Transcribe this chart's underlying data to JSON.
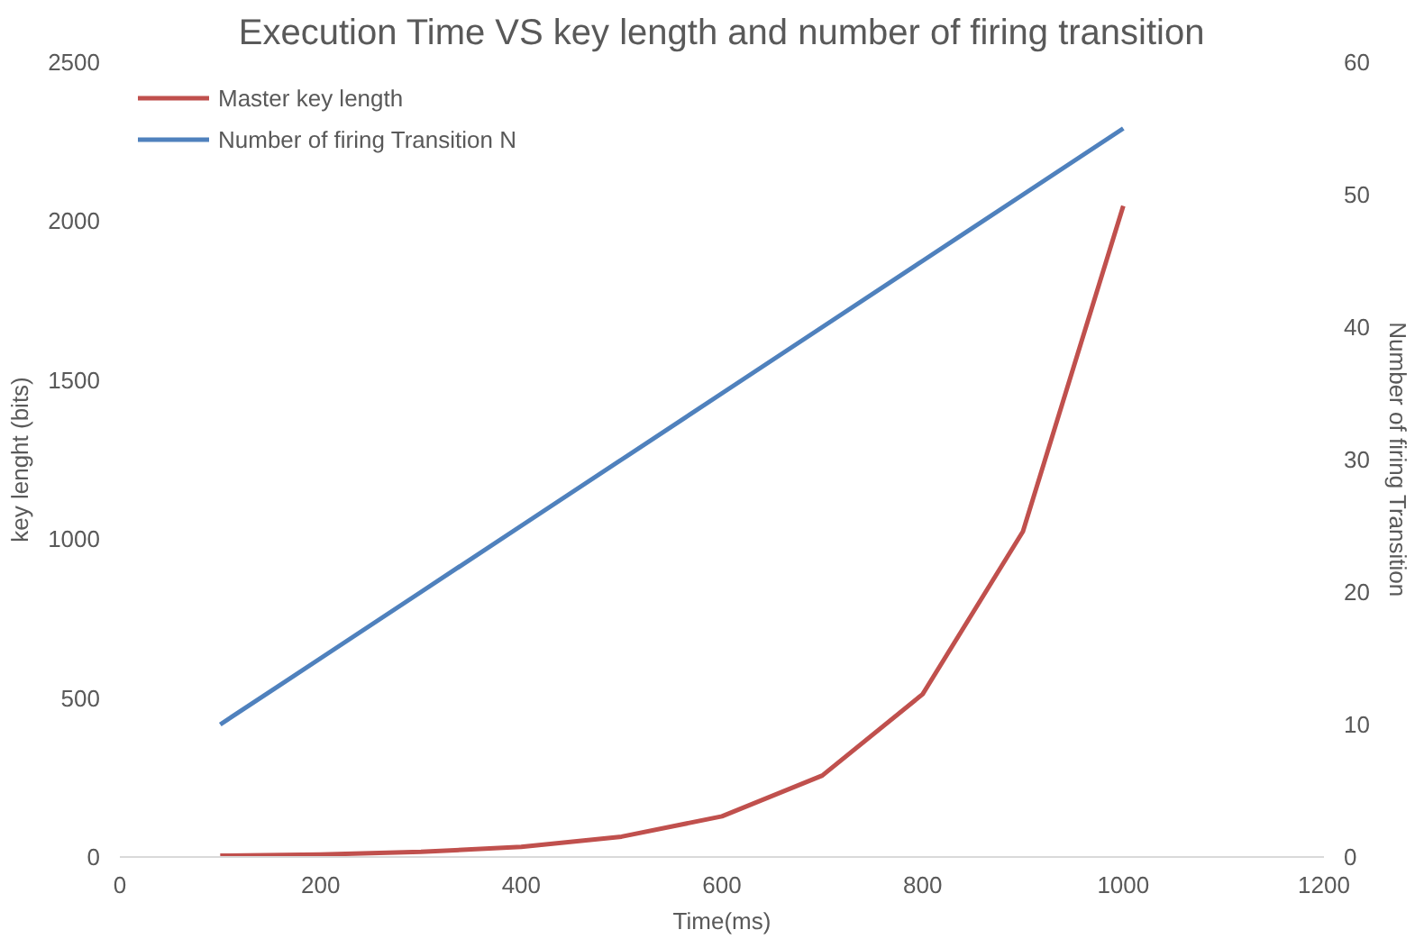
{
  "chart_data": {
    "type": "line",
    "title": "Execution Time VS key length and number of firing transition",
    "xlabel": "Time(ms)",
    "ylabel": "key lenght (bits)",
    "y2label": "Number of firing Transition",
    "x": [
      100,
      200,
      300,
      400,
      500,
      600,
      700,
      800,
      900,
      1000
    ],
    "series": [
      {
        "name": "Master key length",
        "color": "#c0504d",
        "values": [
          4,
          8,
          16,
          32,
          64,
          128,
          256,
          512,
          1024,
          2048
        ]
      },
      {
        "name": "Number of firing Transition N",
        "color": "#4f81bd",
        "axis": "y2",
        "values": [
          10,
          15,
          20,
          25,
          30,
          35,
          40,
          45,
          50,
          55
        ]
      }
    ],
    "xlim": [
      0,
      1200
    ],
    "xticks": [
      0,
      200,
      400,
      600,
      800,
      1000,
      1200
    ],
    "ylim": [
      0,
      2500
    ],
    "yticks": [
      0,
      500,
      1000,
      1500,
      2000,
      2500
    ],
    "y2lim": [
      0,
      60
    ],
    "y2ticks": [
      0,
      10,
      20,
      30,
      40,
      50,
      60
    ],
    "grid": false,
    "legend": "top left",
    "marker": "none",
    "line_style": "solid"
  }
}
